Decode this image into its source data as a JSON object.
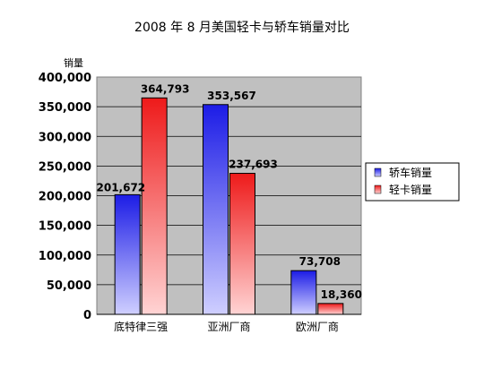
{
  "chart_data": {
    "type": "bar",
    "title": "2008 年 8 月美国轻卡与轿车销量对比",
    "ylabel": "销量",
    "xlabel": "",
    "categories": [
      "底特律三强",
      "亚洲厂商",
      "欧洲厂商"
    ],
    "series": [
      {
        "name": "轿车销量",
        "color": "#3a3af0",
        "values": [
          201672,
          353567,
          73708
        ],
        "labels": [
          "201,672",
          "353,567",
          "73,708"
        ]
      },
      {
        "name": "轻卡销量",
        "color": "#f02a2a",
        "values": [
          364793,
          237693,
          18360
        ],
        "labels": [
          "364,793",
          "237,693",
          "18,360"
        ]
      }
    ],
    "ylim": [
      0,
      400000
    ],
    "yticks": [
      0,
      50000,
      100000,
      150000,
      200000,
      250000,
      300000,
      350000,
      400000
    ],
    "ytick_labels": [
      "0",
      "50,000",
      "100,000",
      "150,000",
      "200,000",
      "250,000",
      "300,000",
      "350,000",
      "400,000"
    ],
    "grid": true,
    "legend_position": "right"
  }
}
